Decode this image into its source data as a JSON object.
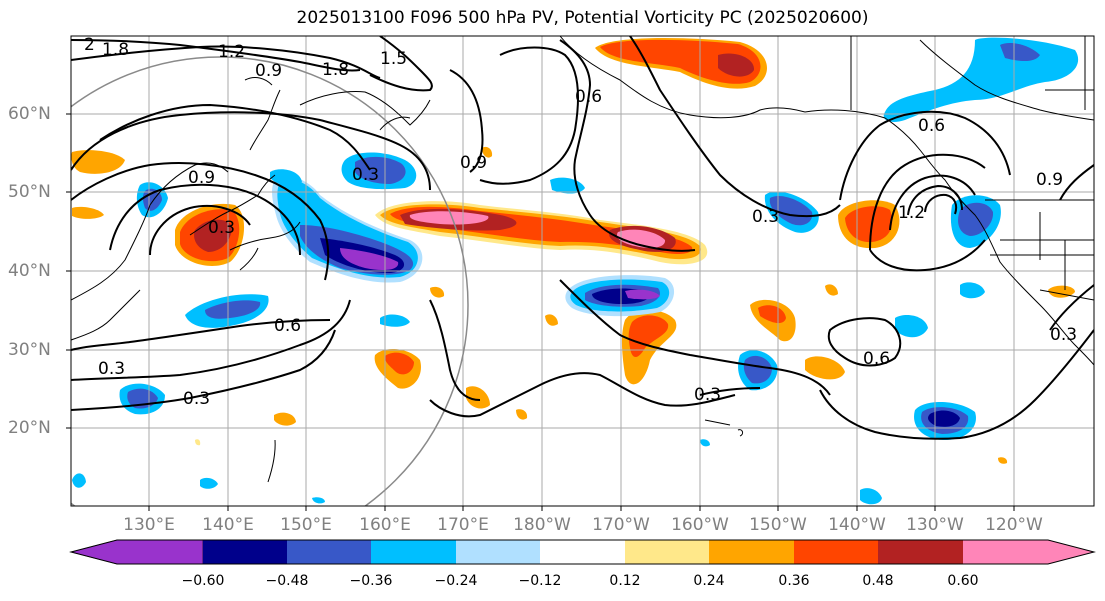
{
  "title": "2025013100 F096 500 hPa PV, Potential Vorticity PC (2025020600)",
  "map": {
    "lat_labels": [
      "60°N",
      "50°N",
      "40°N",
      "30°N",
      "20°N"
    ],
    "lon_labels": [
      "130°E",
      "140°E",
      "150°E",
      "160°E",
      "170°E",
      "180°W",
      "170°W",
      "160°W",
      "150°W",
      "140°W",
      "130°W",
      "120°W"
    ],
    "contour_labels": [
      "2",
      "1.8",
      "1.2",
      "0.9",
      "1.8",
      "1.5",
      "0.6",
      "0.9",
      "0.9",
      "0.3",
      "0.3",
      "0.6",
      "0.3",
      "0.3",
      "0.3",
      "0.6",
      "0.3",
      "0.6",
      "1.2",
      "0.9",
      "0.3"
    ]
  },
  "colorbar": {
    "ticks": [
      "−0.60",
      "−0.48",
      "−0.36",
      "−0.24",
      "−0.12",
      "0.12",
      "0.24",
      "0.36",
      "0.48",
      "0.60"
    ],
    "colors": [
      "#9933cc",
      "#00008b",
      "#3858c8",
      "#00bfff",
      "#b0e0ff",
      "#ffffff",
      "#ffe88a",
      "#ffa500",
      "#ff4500",
      "#b22222",
      "#ff85b8"
    ]
  }
}
